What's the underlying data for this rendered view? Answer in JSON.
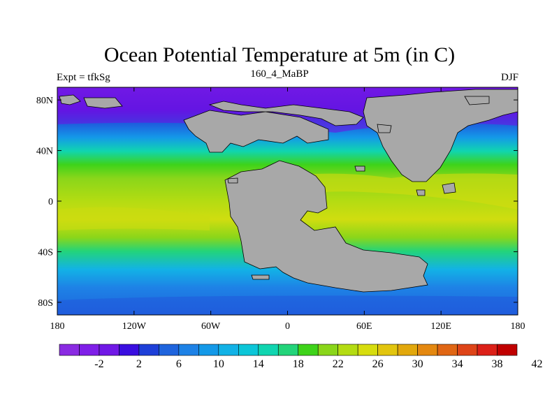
{
  "title": "Ocean Potential Temperature at 5m (in C)",
  "left_label": "Expt = tfkSg",
  "center_label": "160_4_MaBP",
  "right_label": "DJF",
  "y_ticks": [
    {
      "lat": 80,
      "label": "80N"
    },
    {
      "lat": 40,
      "label": "40N"
    },
    {
      "lat": 0,
      "label": "0"
    },
    {
      "lat": -40,
      "label": "40S"
    },
    {
      "lat": -80,
      "label": "80S"
    }
  ],
  "x_ticks": [
    {
      "lon": -180,
      "label": "180"
    },
    {
      "lon": -120,
      "label": "120W"
    },
    {
      "lon": -60,
      "label": "60W"
    },
    {
      "lon": 0,
      "label": "0"
    },
    {
      "lon": 60,
      "label": "60E"
    },
    {
      "lon": 120,
      "label": "120E"
    },
    {
      "lon": 180,
      "label": "180"
    }
  ],
  "colorbar": {
    "colors": [
      "#8a2be2",
      "#7f1fe8",
      "#7018e6",
      "#3a0ee0",
      "#1e3fd8",
      "#1f64dd",
      "#1e82e6",
      "#1499e8",
      "#12b2e6",
      "#0cc6d8",
      "#10d5b0",
      "#23d47a",
      "#3ed31a",
      "#8ad61a",
      "#b4dc12",
      "#d7dd0e",
      "#e2c50e",
      "#e2a80c",
      "#e48810",
      "#e06614",
      "#de4418",
      "#dc2018",
      "#c00000"
    ],
    "labels": [
      "-2",
      "2",
      "6",
      "10",
      "14",
      "18",
      "22",
      "26",
      "30",
      "34",
      "38",
      "42"
    ]
  },
  "land_color": "#a8a8a8",
  "map": {
    "lon_range": [
      -180,
      180
    ],
    "lat_range": [
      -90,
      90
    ]
  }
}
